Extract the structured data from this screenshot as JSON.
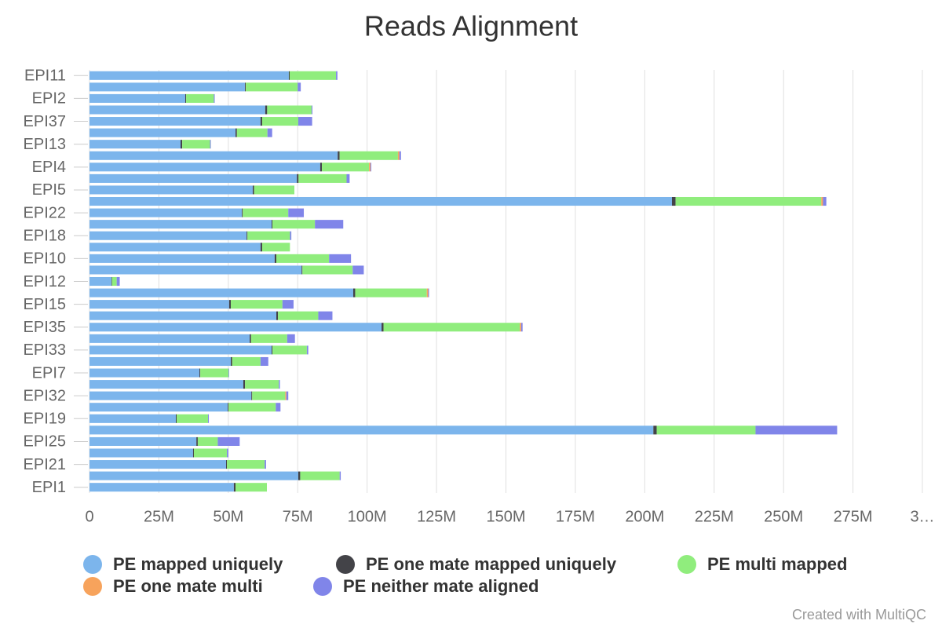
{
  "chart_data": {
    "type": "hbar_stacked",
    "title": "Reads Alignment",
    "credit": "Created with MultiQC",
    "categories": [
      "EPI11",
      null,
      "EPI2",
      null,
      "EPI37",
      null,
      "EPI13",
      null,
      "EPI4",
      null,
      "EPI5",
      null,
      "EPI22",
      null,
      "EPI18",
      null,
      "EPI10",
      null,
      "EPI12",
      null,
      "EPI15",
      null,
      "EPI35",
      null,
      "EPI33",
      null,
      "EPI7",
      null,
      "EPI32",
      null,
      "EPI19",
      null,
      "EPI25",
      null,
      "EPI21",
      null,
      "EPI1"
    ],
    "series": [
      {
        "name": "PE mapped uniquely",
        "color": "#7cb5ec",
        "values": [
          71.8,
          56,
          34.5,
          63.3,
          61.6,
          52.6,
          32.8,
          89.4,
          83.1,
          74.7,
          58.8,
          209.8,
          54.9,
          65.6,
          56.6,
          61.6,
          66.7,
          76.4,
          7.9,
          95,
          50.3,
          67.3,
          105.2,
          57.7,
          65.6,
          50.9,
          39.6,
          55.4,
          58.3,
          49.8,
          31.1,
          203.1,
          38.5,
          37.3,
          49.2,
          75.2,
          52
        ]
      },
      {
        "name": "PE one mate mapped uniquely",
        "color": "#434348",
        "values": [
          0.3,
          0.3,
          0.3,
          0.7,
          0.6,
          0.5,
          0.6,
          0.7,
          0.6,
          0.6,
          0.5,
          1.3,
          0.3,
          0.3,
          0.3,
          0.6,
          0.6,
          0.3,
          0.2,
          0.7,
          0.6,
          0.6,
          0.7,
          0.5,
          0.3,
          0.5,
          0.3,
          0.6,
          0.3,
          0.3,
          0.3,
          1.2,
          0.5,
          0.3,
          0.3,
          0.7,
          0.6
        ]
      },
      {
        "name": "PE multi mapped",
        "color": "#90ed7d",
        "values": [
          16.7,
          18.7,
          10,
          16,
          13,
          11,
          10,
          21,
          17,
          17.3,
          14.5,
          52.5,
          16.4,
          15.3,
          15.3,
          10,
          19,
          18.1,
          1.7,
          25.8,
          18.6,
          14.5,
          49.1,
          13,
          12.4,
          10.2,
          10.2,
          12.2,
          11.9,
          17,
          11.3,
          35.6,
          7.2,
          11.9,
          13.6,
          14.2,
          11.3
        ]
      },
      {
        "name": "PE one mate multi",
        "color": "#f7a35c",
        "values": [
          0,
          0,
          0,
          0,
          0,
          0,
          0,
          0.5,
          0.5,
          0,
          0,
          0.6,
          0,
          0,
          0,
          0,
          0,
          0,
          0,
          0.5,
          0,
          0,
          0.5,
          0,
          0,
          0,
          0,
          0,
          0.4,
          0,
          0,
          0,
          0,
          0,
          0,
          0,
          0
        ]
      },
      {
        "name": "PE neither mate aligned",
        "color": "#8085e9",
        "values": [
          0.5,
          1.1,
          0.3,
          0.3,
          5,
          1.7,
          0.3,
          0.6,
          0.3,
          1.1,
          0,
          1.2,
          5.6,
          10.2,
          0.5,
          0,
          7.9,
          4,
          1.1,
          0.3,
          4,
          5.1,
          0.5,
          2.8,
          0.5,
          2.8,
          0.2,
          0.4,
          0.7,
          1.7,
          0.3,
          29.4,
          7.9,
          0.5,
          0.5,
          0.4,
          0
        ]
      }
    ],
    "xlim": [
      0,
      300
    ],
    "xticks": [
      0,
      {
        "value": 25,
        "label": "25M"
      },
      {
        "value": 50,
        "label": "50M"
      },
      {
        "value": 75,
        "label": "75M"
      },
      {
        "value": 100,
        "label": "100M"
      },
      {
        "value": 125,
        "label": "125M"
      },
      {
        "value": 150,
        "label": "150M"
      },
      {
        "value": 175,
        "label": "175M"
      },
      {
        "value": 200,
        "label": "200M"
      },
      {
        "value": 225,
        "label": "225M"
      },
      {
        "value": 250,
        "label": "250M"
      },
      {
        "value": 275,
        "label": "275M"
      },
      {
        "value": 300,
        "label": "3…"
      }
    ],
    "grid": true
  }
}
